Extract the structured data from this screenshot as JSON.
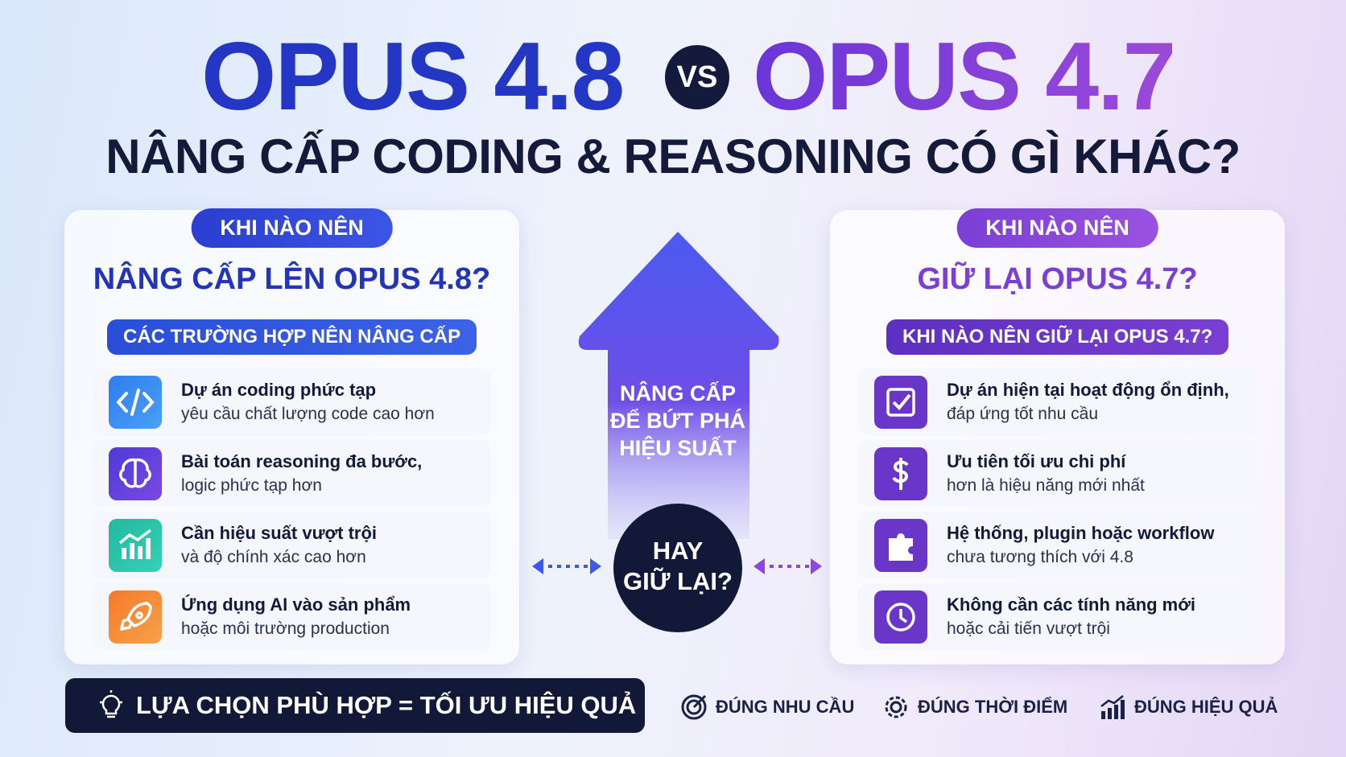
{
  "header": {
    "title_left": "OPUS 4.8",
    "vs": "VS",
    "title_right": "OPUS 4.7",
    "subtitle": "NÂNG CẤP CODING & REASONING CÓ GÌ KHÁC?"
  },
  "left_panel": {
    "badge": "KHI NÀO NÊN",
    "heading": "NÂNG CẤP LÊN OPUS 4.8?",
    "section": "CÁC TRƯỜNG HỢP NÊN NÂNG CẤP",
    "items": [
      {
        "title": "Dự án coding phức tạp",
        "detail": "yêu cầu chất lượng code cao hơn"
      },
      {
        "title": "Bài toán reasoning đa bước,",
        "detail": "logic phức tạp hơn"
      },
      {
        "title": "Cần hiệu suất vượt trội",
        "detail": "và độ chính xác cao hơn"
      },
      {
        "title": "Ứng dụng AI vào sản phẩm",
        "detail": "hoặc môi trường production"
      }
    ]
  },
  "right_panel": {
    "badge": "KHI NÀO NÊN",
    "heading": "GIỮ LẠI OPUS 4.7?",
    "section": "KHI NÀO NÊN GIỮ LẠI OPUS 4.7?",
    "items": [
      {
        "title": "Dự án hiện tại hoạt động ổn định,",
        "detail": "đáp ứng tốt nhu cầu"
      },
      {
        "title": "Ưu tiên tối ưu chi phí",
        "detail": "hơn là hiệu năng mới nhất"
      },
      {
        "title": "Hệ thống, plugin hoặc workflow",
        "detail": "chưa tương thích với 4.8"
      },
      {
        "title": "Không cần các tính năng mới",
        "detail": "hoặc cải tiến vượt trội"
      }
    ]
  },
  "center": {
    "arrow_text": [
      "NÂNG CẤP",
      "ĐỂ BỨT PHÁ",
      "HIỆU SUẤT"
    ],
    "circle_text": [
      "HAY",
      "GIỮ LẠI?"
    ]
  },
  "footer": {
    "banner": "LỰA CHỌN PHÙ HỢP = TỐI ƯU HIỆU QUẢ",
    "tags": [
      "ĐÚNG NHU CẦU",
      "ĐÚNG THỜI ĐIỂM",
      "ĐÚNG HIỆU QUẢ"
    ]
  }
}
